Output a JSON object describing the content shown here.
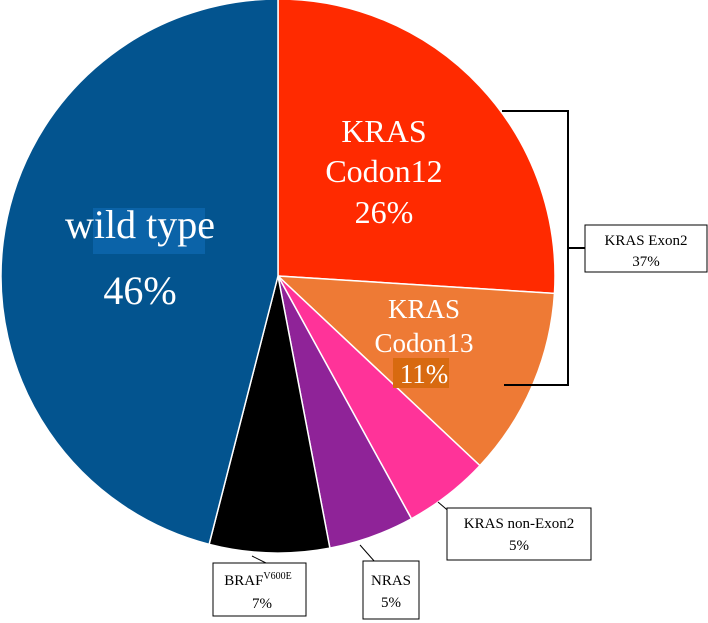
{
  "chart_data": {
    "type": "pie",
    "slices": [
      {
        "id": "kras-codon12",
        "label_lines": [
          "KRAS",
          "Codon12"
        ],
        "pct_label": "26%",
        "value": 26,
        "color": "#ff2a00"
      },
      {
        "id": "kras-codon13",
        "label_lines": [
          "KRAS",
          "Codon13"
        ],
        "pct_label": "11%",
        "value": 11,
        "color": "#ee7a35"
      },
      {
        "id": "kras-non-exon2",
        "label": "KRAS non-Exon2",
        "pct_label": "5%",
        "value": 5,
        "color": "#ff3399"
      },
      {
        "id": "nras",
        "label": "NRAS",
        "pct_label": "5%",
        "value": 5,
        "color": "#8f2398"
      },
      {
        "id": "braf",
        "label_main": "BRAF",
        "label_sup": "V600E",
        "pct_label": "7%",
        "value": 7,
        "color": "#000000"
      },
      {
        "id": "wild-type",
        "label": "wild type",
        "pct_label": "46%",
        "value": 46,
        "color": "#03548f"
      }
    ],
    "group": {
      "label": "KRAS Exon2",
      "pct_label": "37%",
      "members": [
        "kras-codon12",
        "kras-codon13"
      ]
    },
    "label_highlight_colors": {
      "wild_type": "#0b63a8",
      "codon13": "#d86a10"
    }
  }
}
